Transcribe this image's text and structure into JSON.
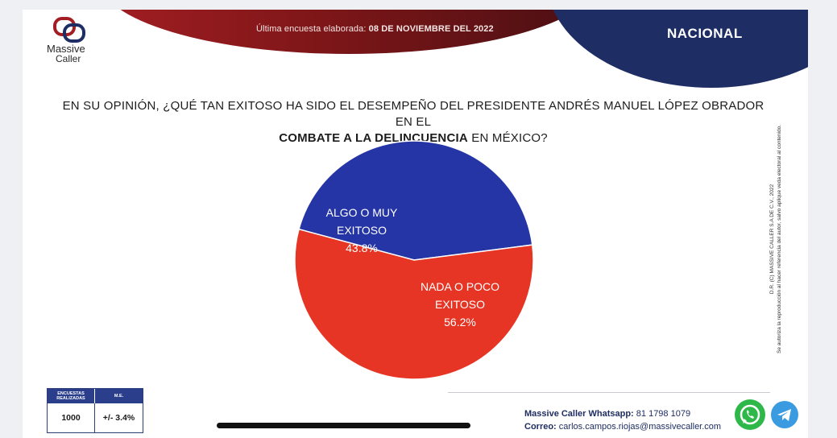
{
  "logo": {
    "line1": "Massive",
    "line2": "Caller"
  },
  "banner": {
    "survey_label": "Última encuesta elaborada:",
    "survey_date": "08 DE NOVIEMBRE DEL 2022"
  },
  "region": "NACIONAL",
  "question": {
    "part1": "EN SU OPINIÓN, ¿QUÉ TAN EXITOSO HA SIDO EL DESEMPEÑO DEL PRESIDENTE ANDRÉS MANUEL LÓPEZ OBRADOR EN EL",
    "bold": "COMBATE A LA DELINCUENCIA",
    "part2": "EN MÉXICO?"
  },
  "vertical_note": {
    "line1": "D.R. (C) MASSIVE CALLER S.A DE C.V., 2022",
    "line2": "Se autoriza la reproducción al hacer referencia del autor, salvo aplique veda electoral al contenido."
  },
  "chart_data": {
    "type": "pie",
    "slices": [
      {
        "label_lines": [
          "ALGO O MUY",
          "EXITOSO"
        ],
        "value": 43.8,
        "value_text": "43.8%",
        "color": "#2535a5"
      },
      {
        "label_lines": [
          "NADA O POCO",
          "EXITOSO"
        ],
        "value": 56.2,
        "value_text": "56.2%",
        "color": "#e63524"
      }
    ]
  },
  "stats": {
    "col1_header": "ENCUESTAS REALIZADAS",
    "col2_header": "M.E.",
    "col1_value": "1000",
    "col2_value": "+/- 3.4%"
  },
  "contact": {
    "whatsapp_label": "Massive Caller Whatsapp:",
    "whatsapp_number": "81 1798 1079",
    "email_label": "Correo:",
    "email": "carlos.campos.riojas@massivecaller.com"
  },
  "icons": {
    "whatsapp": "whatsapp-icon",
    "telegram": "telegram-icon"
  }
}
